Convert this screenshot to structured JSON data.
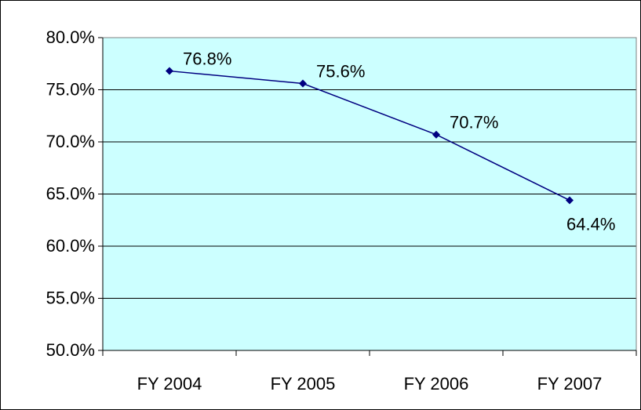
{
  "chart_data": {
    "type": "line",
    "categories": [
      "FY 2004",
      "FY 2005",
      "FY 2006",
      "FY 2007"
    ],
    "series": [
      {
        "name": null,
        "color": "#000080",
        "values": [
          76.8,
          75.6,
          70.7,
          64.4
        ],
        "value_labels": [
          "76.8%",
          "75.6%",
          "70.7%",
          "64.4%"
        ]
      }
    ],
    "ylim": [
      50,
      80
    ],
    "yticks": [
      {
        "value": 50,
        "label": "50.0%"
      },
      {
        "value": 55,
        "label": "55.0%"
      },
      {
        "value": 60,
        "label": "60.0%"
      },
      {
        "value": 65,
        "label": "65.0%"
      },
      {
        "value": 70,
        "label": "70.0%"
      },
      {
        "value": 75,
        "label": "75.0%"
      },
      {
        "value": 80,
        "label": "80.0%"
      }
    ],
    "grid": true,
    "plot_background": "#ccffff"
  }
}
